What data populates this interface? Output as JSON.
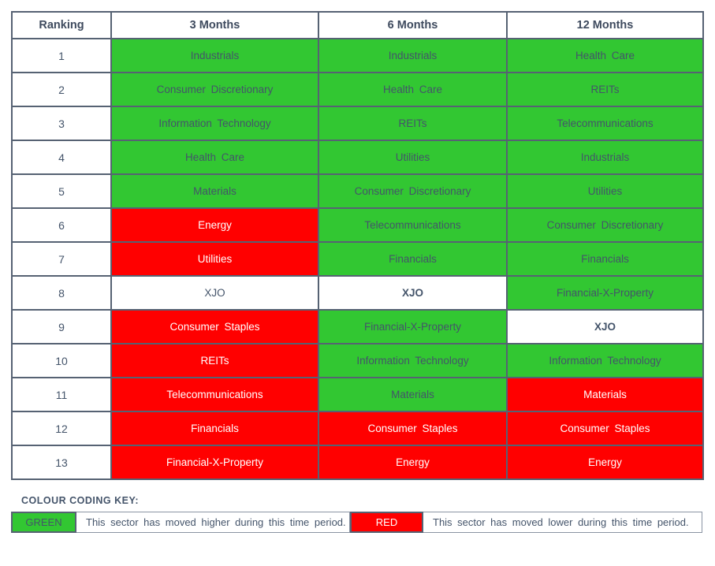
{
  "chart_data": {
    "type": "table",
    "headers": [
      "Ranking",
      "3 Months",
      "6 Months",
      "12 Months"
    ],
    "rows": [
      {
        "rank": "1",
        "cells": [
          {
            "label": "Industrials",
            "color": "green"
          },
          {
            "label": "Industrials",
            "color": "green"
          },
          {
            "label": "Health Care",
            "color": "green"
          }
        ]
      },
      {
        "rank": "2",
        "cells": [
          {
            "label": "Consumer Discretionary",
            "color": "green"
          },
          {
            "label": "Health Care",
            "color": "green"
          },
          {
            "label": "REITs",
            "color": "green"
          }
        ]
      },
      {
        "rank": "3",
        "cells": [
          {
            "label": "Information Technology",
            "color": "green"
          },
          {
            "label": "REITs",
            "color": "green"
          },
          {
            "label": "Telecommunications",
            "color": "green"
          }
        ]
      },
      {
        "rank": "4",
        "cells": [
          {
            "label": "Health Care",
            "color": "green"
          },
          {
            "label": "Utilities",
            "color": "green"
          },
          {
            "label": "Industrials",
            "color": "green"
          }
        ]
      },
      {
        "rank": "5",
        "cells": [
          {
            "label": "Materials",
            "color": "green"
          },
          {
            "label": "Consumer Discretionary",
            "color": "green"
          },
          {
            "label": "Utilities",
            "color": "green"
          }
        ]
      },
      {
        "rank": "6",
        "cells": [
          {
            "label": "Energy",
            "color": "red"
          },
          {
            "label": "Telecommunications",
            "color": "green"
          },
          {
            "label": "Consumer Discretionary",
            "color": "green"
          }
        ]
      },
      {
        "rank": "7",
        "cells": [
          {
            "label": "Utilities",
            "color": "red"
          },
          {
            "label": "Financials",
            "color": "green"
          },
          {
            "label": "Financials",
            "color": "green"
          }
        ]
      },
      {
        "rank": "8",
        "cells": [
          {
            "label": "XJO",
            "color": "white"
          },
          {
            "label": "XJO",
            "color": "white",
            "bold": true
          },
          {
            "label": "Financial-X-Property",
            "color": "green"
          }
        ]
      },
      {
        "rank": "9",
        "cells": [
          {
            "label": "Consumer Staples",
            "color": "red"
          },
          {
            "label": "Financial-X-Property",
            "color": "green"
          },
          {
            "label": "XJO",
            "color": "white",
            "bold": true
          }
        ]
      },
      {
        "rank": "10",
        "cells": [
          {
            "label": "REITs",
            "color": "red"
          },
          {
            "label": "Information Technology",
            "color": "green"
          },
          {
            "label": "Information Technology",
            "color": "green"
          }
        ]
      },
      {
        "rank": "11",
        "cells": [
          {
            "label": "Telecommunications",
            "color": "red"
          },
          {
            "label": "Materials",
            "color": "green"
          },
          {
            "label": "Materials",
            "color": "red"
          }
        ]
      },
      {
        "rank": "12",
        "cells": [
          {
            "label": "Financials",
            "color": "red"
          },
          {
            "label": "Consumer Staples",
            "color": "red"
          },
          {
            "label": "Consumer Staples",
            "color": "red"
          }
        ]
      },
      {
        "rank": "13",
        "cells": [
          {
            "label": "Financial-X-Property",
            "color": "red"
          },
          {
            "label": "Energy",
            "color": "red"
          },
          {
            "label": "Energy",
            "color": "red"
          }
        ]
      }
    ],
    "legend": {
      "title": "COLOUR CODING KEY:",
      "items": [
        {
          "swatch_label": "GREEN",
          "color": "green",
          "description": "This sector has moved higher during this time period."
        },
        {
          "swatch_label": "RED",
          "color": "red",
          "description": "This sector has moved lower during this time period."
        }
      ]
    }
  },
  "colors": {
    "green": "#32C732",
    "red": "#FF0000",
    "text_dark": "#44546A",
    "header_text": "#3E4A5E",
    "border_color": "#566273",
    "key_border": "#8A94A3"
  }
}
